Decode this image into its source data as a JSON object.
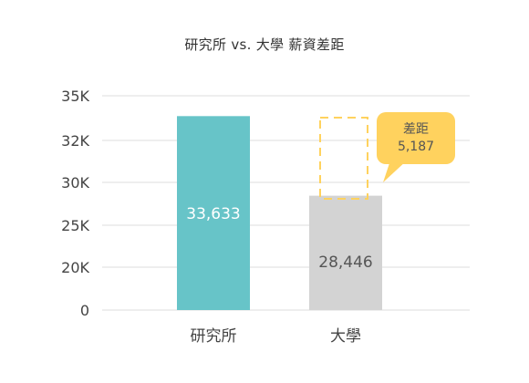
{
  "chart_data": {
    "type": "bar",
    "title": "研究所 vs. 大學  薪資差距",
    "categories": [
      "研究所",
      "大學"
    ],
    "values": [
      33633,
      28446
    ],
    "value_labels": [
      "33,633",
      "28,446"
    ],
    "colors": [
      "#67c4c8",
      "#d3d3d3"
    ],
    "value_label_colors": [
      "#ffffff",
      "#555555"
    ],
    "yticks": [
      0,
      20000,
      25000,
      30000,
      32000,
      35000
    ],
    "ytick_labels": [
      "0",
      "20K",
      "25K",
      "30K",
      "32K",
      "35K"
    ],
    "grid": true,
    "gap_annotation": {
      "label": "差距",
      "value_label": "5,187",
      "value": 5187,
      "color": "#ffd25e"
    }
  }
}
